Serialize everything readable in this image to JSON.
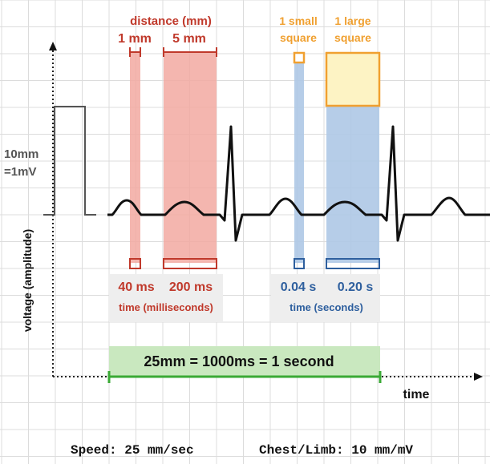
{
  "colors": {
    "grid": "#dcdcdc",
    "red": "#c0392b",
    "red_fill": "#f2a9a1",
    "orange": "#f0a030",
    "yellow_fill": "#fdf3c4",
    "blue": "#2e5f9e",
    "blue_fill": "#aec8e6",
    "green": "#3aaa35",
    "green_fill": "#c9e8bf",
    "grey_box": "#eeeeee",
    "ink": "#111111"
  },
  "labels": {
    "distance_title": "distance (mm)",
    "one_mm": "1 mm",
    "five_mm": "5 mm",
    "one_small_square_line1": "1 small",
    "one_small_square_line2": "square",
    "one_large_square_line1": "1 large",
    "one_large_square_line2": "square",
    "calibration_line1": "10mm",
    "calibration_line2": "=1mV",
    "y_axis": "voltage (amplitude)",
    "x_axis": "time",
    "ms_40": "40 ms",
    "ms_200": "200 ms",
    "time_ms_caption": "time (milliseconds)",
    "s_004": "0.04 s",
    "s_020": "0.20 s",
    "time_s_caption": "time (seconds)",
    "equation": "25mm = 1000ms = 1 second"
  },
  "footer": {
    "speed": "Speed: 25 mm/sec",
    "gain": "Chest/Limb: 10 mm/mV"
  },
  "icons": {
    "y_axis_arrow": "arrow-up-icon",
    "x_axis_arrow": "arrow-right-icon"
  }
}
